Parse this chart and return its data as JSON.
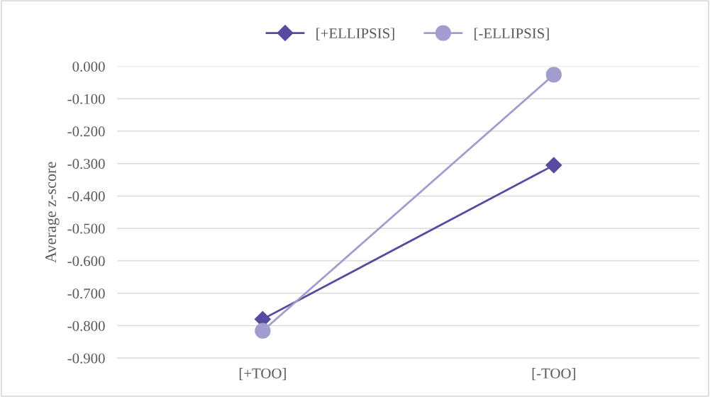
{
  "chart_data": {
    "type": "line",
    "ylabel": "Average z-score",
    "categories": [
      "[+TOO]",
      "[-TOO]"
    ],
    "series": [
      {
        "name": "[+ELLIPSIS]",
        "color": "#574b9f",
        "marker": "diamond",
        "values": [
          -0.78,
          -0.305
        ]
      },
      {
        "name": "[-ELLIPSIS]",
        "color": "#a29dcf",
        "marker": "circle",
        "values": [
          -0.816,
          -0.026
        ]
      }
    ],
    "ylim": [
      -0.9,
      0
    ],
    "yticks": [
      {
        "value": 0,
        "label": "0.000"
      },
      {
        "value": -0.1,
        "label": "-0.100"
      },
      {
        "value": -0.2,
        "label": "-0.200"
      },
      {
        "value": -0.3,
        "label": "-0.300"
      },
      {
        "value": -0.4,
        "label": "-0.400"
      },
      {
        "value": -0.5,
        "label": "-0.500"
      },
      {
        "value": -0.6,
        "label": "-0.600"
      },
      {
        "value": -0.7,
        "label": "-0.700"
      },
      {
        "value": -0.8,
        "label": "-0.800"
      },
      {
        "value": -0.9,
        "label": "-0.900"
      }
    ],
    "grid": "y",
    "legend": "top",
    "line_style": "solid"
  }
}
